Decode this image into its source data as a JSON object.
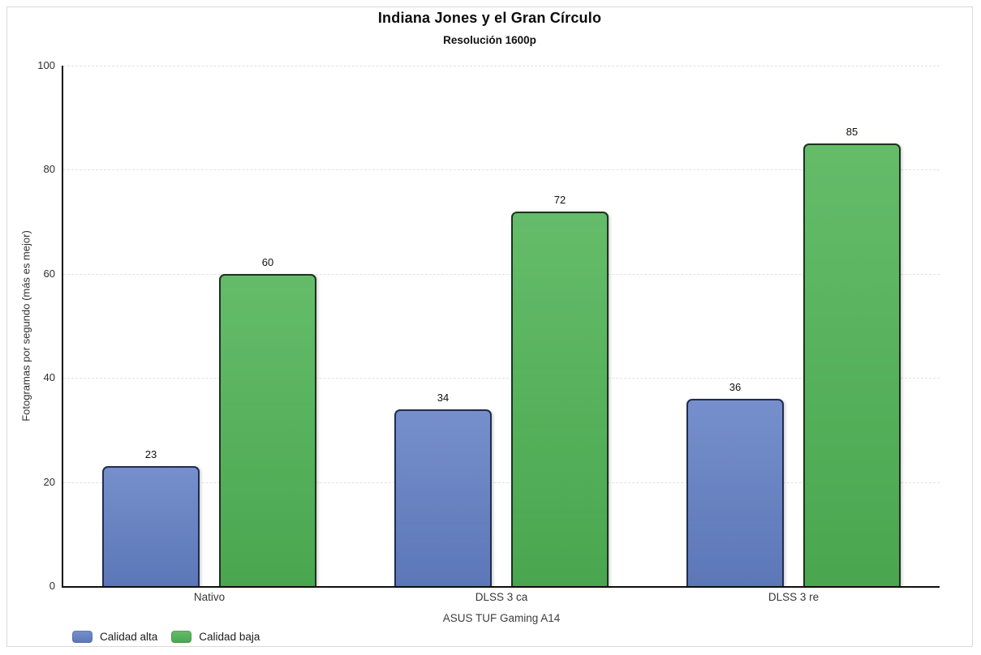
{
  "chart_data": {
    "type": "bar",
    "title": "Indiana Jones y el Gran Círculo",
    "subtitle": "Resolución 1600p",
    "xlabel": "ASUS TUF Gaming A14",
    "ylabel": "Fotogramas por segundo (más es mejor)",
    "categories": [
      "Nativo",
      "DLSS 3 ca",
      "DLSS 3 re"
    ],
    "series": [
      {
        "name": "Calidad alta",
        "color": "#6380c5",
        "border_color": "#222c4e",
        "values": [
          23,
          34,
          36
        ]
      },
      {
        "name": "Calidad baja",
        "color": "#4fb355",
        "border_color": "#1d321e",
        "values": [
          60,
          72,
          85
        ]
      }
    ],
    "ylim": [
      0,
      100
    ],
    "yticks": [
      0,
      20,
      40,
      60,
      80,
      100
    ],
    "grid": true,
    "value_labels": true,
    "legend_position": "bottom-left"
  }
}
